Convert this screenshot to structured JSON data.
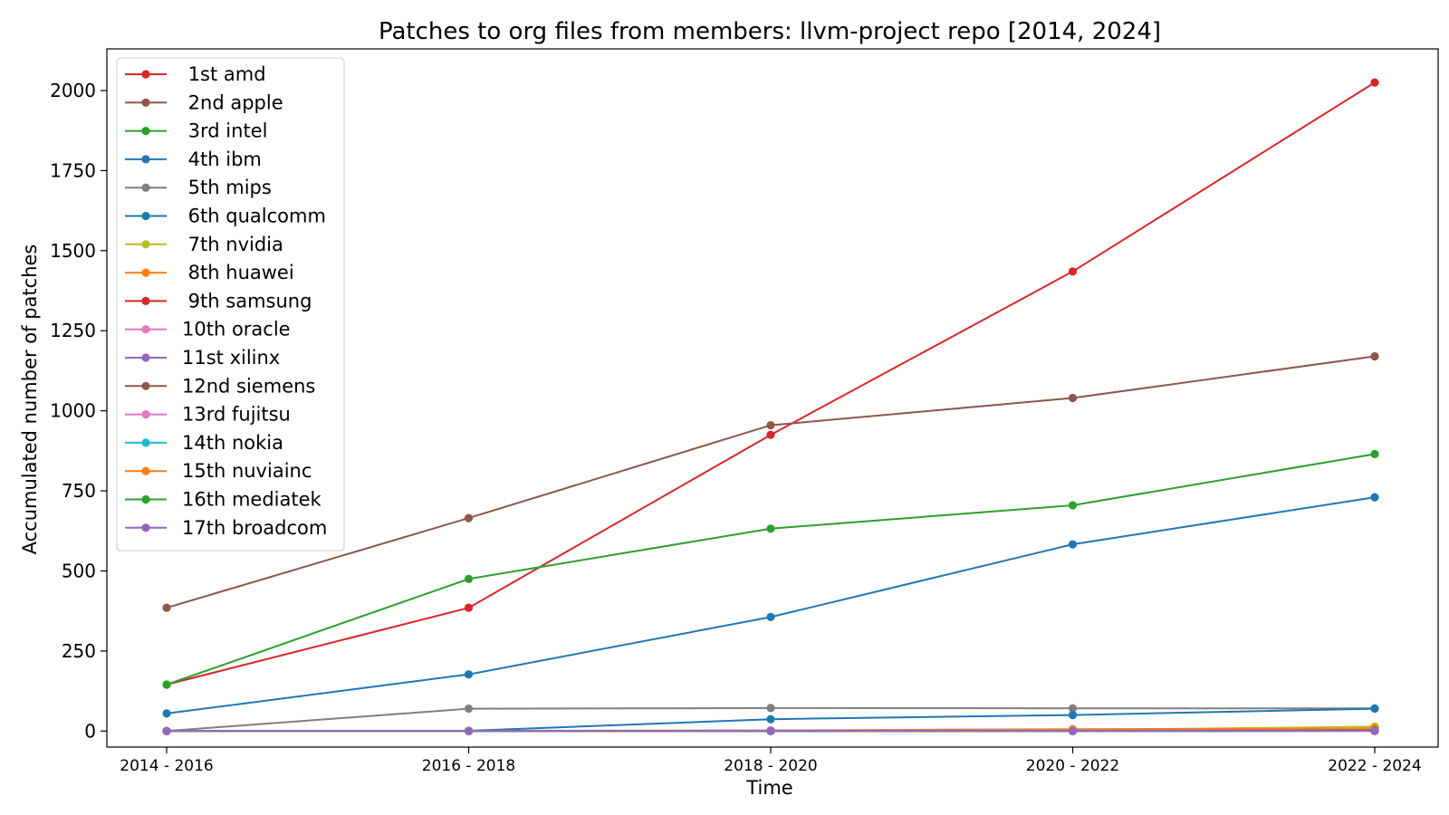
{
  "chart_data": {
    "type": "line",
    "title": "Patches to org files from members: llvm-project repo [2014, 2024]",
    "xlabel": "Time",
    "ylabel": "Accumulated number of patches",
    "categories": [
      "2014 - 2016",
      "2016 - 2018",
      "2018 - 2020",
      "2020 - 2022",
      "2022 - 2024"
    ],
    "ylim": [
      -50,
      2130
    ],
    "yticks": [
      0,
      250,
      500,
      750,
      1000,
      1250,
      1500,
      1750,
      2000
    ],
    "grid": false,
    "legend_position": "top-left",
    "series": [
      {
        "name": " 1st amd",
        "color": "#d62728",
        "values": [
          145,
          385,
          925,
          1435,
          2025
        ]
      },
      {
        "name": " 2nd apple",
        "color": "#8c564b",
        "values": [
          385,
          665,
          955,
          1040,
          1170
        ]
      },
      {
        "name": " 3rd intel",
        "color": "#2ca02c",
        "values": [
          145,
          475,
          632,
          705,
          865
        ]
      },
      {
        "name": " 4th ibm",
        "color": "#1f77b4",
        "values": [
          55,
          177,
          356,
          583,
          730
        ]
      },
      {
        "name": " 5th mips",
        "color": "#7f7f7f",
        "values": [
          0,
          70,
          72,
          71,
          71
        ]
      },
      {
        "name": " 6th qualcomm",
        "color": "#1f77b4",
        "values": [
          0,
          1,
          37,
          50,
          70
        ]
      },
      {
        "name": " 7th nvidia",
        "color": "#bcbd22",
        "values": [
          0,
          0,
          1,
          3,
          14
        ]
      },
      {
        "name": " 8th huawei",
        "color": "#ff7f0e",
        "values": [
          0,
          0,
          2,
          6,
          8
        ]
      },
      {
        "name": " 9th samsung",
        "color": "#d62728",
        "values": [
          0,
          0,
          1,
          2,
          3
        ]
      },
      {
        "name": "10th oracle",
        "color": "#e377c2",
        "values": [
          0,
          1,
          2,
          2,
          2
        ]
      },
      {
        "name": "11st xilinx",
        "color": "#9467bd",
        "values": [
          0,
          0,
          0,
          1,
          2
        ]
      },
      {
        "name": "12nd siemens",
        "color": "#8c564b",
        "values": [
          0,
          0,
          0,
          0,
          1
        ]
      },
      {
        "name": "13rd fujitsu",
        "color": "#e377c2",
        "values": [
          0,
          0,
          1,
          1,
          1
        ]
      },
      {
        "name": "14th nokia",
        "color": "#17becf",
        "values": [
          0,
          0,
          0,
          0,
          1
        ]
      },
      {
        "name": "15th nuviainc",
        "color": "#ff7f0e",
        "values": [
          0,
          0,
          0,
          1,
          1
        ]
      },
      {
        "name": "16th mediatek",
        "color": "#2ca02c",
        "values": [
          0,
          0,
          0,
          0,
          1
        ]
      },
      {
        "name": "17th broadcom",
        "color": "#9467bd",
        "values": [
          0,
          0,
          0,
          0,
          0
        ]
      }
    ]
  }
}
